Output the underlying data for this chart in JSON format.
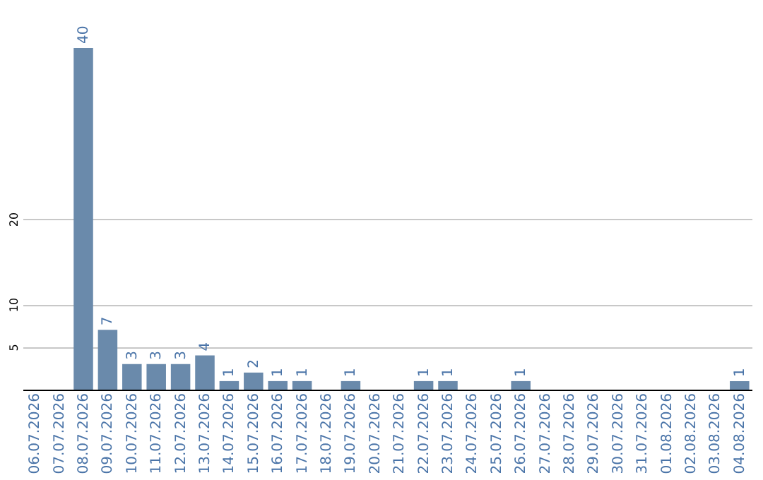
{
  "chart_data": {
    "type": "bar",
    "categories": [
      "06.07.2026",
      "07.07.2026",
      "08.07.2026",
      "09.07.2026",
      "10.07.2026",
      "11.07.2026",
      "12.07.2026",
      "13.07.2026",
      "14.07.2026",
      "15.07.2026",
      "16.07.2026",
      "17.07.2026",
      "18.07.2026",
      "19.07.2026",
      "20.07.2026",
      "21.07.2026",
      "22.07.2026",
      "23.07.2026",
      "24.07.2026",
      "25.07.2026",
      "26.07.2026",
      "27.07.2026",
      "28.07.2026",
      "29.07.2026",
      "30.07.2026",
      "31.07.2026",
      "01.08.2026",
      "02.08.2026",
      "03.08.2026",
      "04.08.2026"
    ],
    "values": [
      null,
      null,
      40,
      7,
      3,
      3,
      3,
      4,
      1,
      2,
      1,
      1,
      null,
      1,
      null,
      null,
      1,
      1,
      null,
      null,
      1,
      null,
      null,
      null,
      null,
      null,
      null,
      null,
      null,
      1
    ],
    "color": "#6a8aab",
    "ylim": [
      0,
      40
    ],
    "yticks": [
      5,
      10,
      20
    ],
    "grid": "y",
    "data_labels": true
  }
}
